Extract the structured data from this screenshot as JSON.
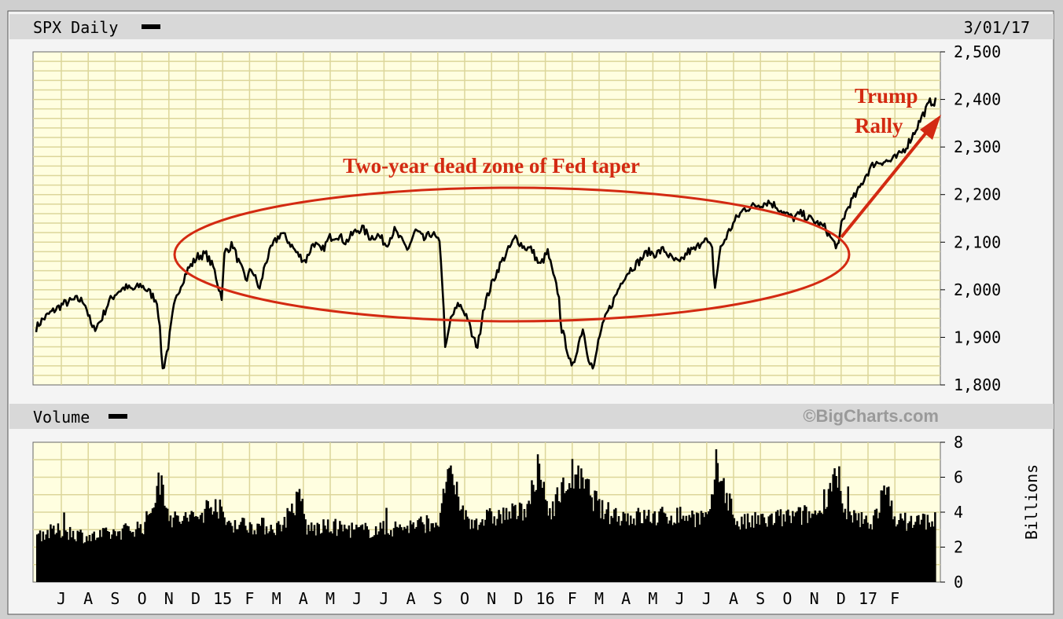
{
  "header": {
    "title": "SPX Daily",
    "date": "3/01/17",
    "volume_title": "Volume",
    "watermark": "©BigCharts.com"
  },
  "colors": {
    "plot_bg": "#fffee0",
    "grid": "#dcd69a",
    "line": "#000000",
    "annotation": "#d32a12",
    "header_bar": "#d8d8d8",
    "frame_bg": "#f4f4f4"
  },
  "chart_data": [
    {
      "type": "line",
      "title": "SPX Daily",
      "x_tick_labels": [
        "J",
        "A",
        "S",
        "O",
        "N",
        "D",
        "15",
        "F",
        "M",
        "A",
        "M",
        "J",
        "J",
        "A",
        "S",
        "O",
        "N",
        "D",
        "16",
        "F",
        "M",
        "A",
        "M",
        "J",
        "J",
        "A",
        "S",
        "O",
        "N",
        "D",
        "17",
        "F"
      ],
      "ylim": [
        1800,
        2500
      ],
      "yticks": [
        1800,
        1900,
        2000,
        2100,
        2200,
        2300,
        2400,
        2500
      ],
      "ytick_labels": [
        "1,800",
        "1,900",
        "2,000",
        "2,100",
        "2,200",
        "2,300",
        "2,400",
        "2,500"
      ],
      "grid": true,
      "series": [
        {
          "approx_path": [
            [
              0,
              1920
            ],
            [
              0.2,
              1935
            ],
            [
              0.5,
              1950
            ],
            [
              1.0,
              1970
            ],
            [
              1.5,
              1980
            ],
            [
              1.8,
              1975
            ],
            [
              2.1,
              1915
            ],
            [
              2.4,
              1935
            ],
            [
              2.7,
              1975
            ],
            [
              3.0,
              1995
            ],
            [
              3.3,
              2005
            ],
            [
              3.6,
              2000
            ],
            [
              3.9,
              2010
            ],
            [
              4.2,
              1995
            ],
            [
              4.5,
              1975
            ],
            [
              4.6,
              1910
            ],
            [
              4.7,
              1830
            ],
            [
              4.9,
              1880
            ],
            [
              5.1,
              1960
            ],
            [
              5.3,
              2000
            ],
            [
              5.6,
              2040
            ],
            [
              6.0,
              2070
            ],
            [
              6.3,
              2075
            ],
            [
              6.6,
              2045
            ],
            [
              6.8,
              2000
            ],
            [
              6.9,
              1985
            ],
            [
              7.0,
              2080
            ],
            [
              7.3,
              2095
            ],
            [
              7.5,
              2060
            ],
            [
              7.8,
              2020
            ],
            [
              8.0,
              2045
            ],
            [
              8.3,
              2000
            ],
            [
              8.5,
              2055
            ],
            [
              8.8,
              2095
            ],
            [
              9.1,
              2120
            ],
            [
              9.4,
              2100
            ],
            [
              9.7,
              2075
            ],
            [
              10.0,
              2060
            ],
            [
              10.3,
              2100
            ],
            [
              10.6,
              2080
            ],
            [
              10.9,
              2110
            ],
            [
              11.2,
              2115
            ],
            [
              11.5,
              2100
            ],
            [
              11.8,
              2120
            ],
            [
              12.1,
              2130
            ],
            [
              12.4,
              2110
            ],
            [
              12.7,
              2115
            ],
            [
              13.0,
              2095
            ],
            [
              13.3,
              2125
            ],
            [
              13.6,
              2100
            ],
            [
              13.8,
              2085
            ],
            [
              14.1,
              2125
            ],
            [
              14.4,
              2105
            ],
            [
              14.7,
              2120
            ],
            [
              15.0,
              2095
            ],
            [
              15.1,
              1995
            ],
            [
              15.2,
              1870
            ],
            [
              15.4,
              1940
            ],
            [
              15.7,
              1970
            ],
            [
              16.0,
              1945
            ],
            [
              16.2,
              1900
            ],
            [
              16.4,
              1880
            ],
            [
              16.6,
              1960
            ],
            [
              16.9,
              2010
            ],
            [
              17.2,
              2050
            ],
            [
              17.5,
              2080
            ],
            [
              17.8,
              2110
            ],
            [
              18.1,
              2090
            ],
            [
              18.4,
              2085
            ],
            [
              18.7,
              2050
            ],
            [
              19.0,
              2080
            ],
            [
              19.2,
              2030
            ],
            [
              19.4,
              1990
            ],
            [
              19.5,
              1920
            ],
            [
              19.7,
              1880
            ],
            [
              19.9,
              1830
            ],
            [
              20.1,
              1880
            ],
            [
              20.3,
              1920
            ],
            [
              20.5,
              1860
            ],
            [
              20.7,
              1830
            ],
            [
              20.9,
              1900
            ],
            [
              21.2,
              1950
            ],
            [
              21.5,
              1985
            ],
            [
              21.8,
              2025
            ],
            [
              22.1,
              2045
            ],
            [
              22.4,
              2060
            ],
            [
              22.7,
              2080
            ],
            [
              23.0,
              2075
            ],
            [
              23.3,
              2085
            ],
            [
              23.6,
              2065
            ],
            [
              23.9,
              2055
            ],
            [
              24.2,
              2080
            ],
            [
              24.5,
              2085
            ],
            [
              24.8,
              2110
            ],
            [
              25.1,
              2085
            ],
            [
              25.2,
              2000
            ],
            [
              25.4,
              2085
            ],
            [
              25.7,
              2120
            ],
            [
              26.0,
              2150
            ],
            [
              26.3,
              2170
            ],
            [
              26.6,
              2175
            ],
            [
              26.9,
              2180
            ],
            [
              27.2,
              2185
            ],
            [
              27.5,
              2175
            ],
            [
              27.8,
              2160
            ],
            [
              28.1,
              2150
            ],
            [
              28.4,
              2160
            ],
            [
              28.7,
              2150
            ],
            [
              29.0,
              2140
            ],
            [
              29.3,
              2130
            ],
            [
              29.6,
              2100
            ],
            [
              29.8,
              2090
            ],
            [
              29.9,
              2140
            ],
            [
              30.2,
              2180
            ],
            [
              30.5,
              2205
            ],
            [
              30.8,
              2240
            ],
            [
              31.1,
              2265
            ],
            [
              31.4,
              2270
            ],
            [
              31.7,
              2270
            ],
            [
              32.0,
              2280
            ],
            [
              32.3,
              2300
            ],
            [
              32.6,
              2330
            ],
            [
              32.9,
              2365
            ],
            [
              33.2,
              2395
            ]
          ]
        }
      ]
    },
    {
      "type": "bar",
      "title": "Volume",
      "ylim": [
        0,
        8
      ],
      "yticks": [
        0,
        2,
        4,
        6,
        8
      ],
      "ytick_labels": [
        "0",
        "2",
        "4",
        "6",
        "8"
      ],
      "ylabel": "Billions",
      "grid": true,
      "series": [
        {
          "approx_profile": [
            [
              0,
              2.8
            ],
            [
              1,
              3.0
            ],
            [
              2,
              2.6
            ],
            [
              3,
              2.9
            ],
            [
              4,
              3.3
            ],
            [
              4.6,
              6.0
            ],
            [
              5,
              3.6
            ],
            [
              6,
              3.8
            ],
            [
              6.6,
              4.8
            ],
            [
              7,
              3.5
            ],
            [
              8,
              3.3
            ],
            [
              9,
              3.2
            ],
            [
              9.8,
              5.0
            ],
            [
              10,
              3.1
            ],
            [
              11,
              3.2
            ],
            [
              12,
              3.0
            ],
            [
              13,
              3.1
            ],
            [
              14,
              3.3
            ],
            [
              15,
              3.6
            ],
            [
              15.2,
              6.5
            ],
            [
              16,
              3.5
            ],
            [
              17,
              3.8
            ],
            [
              18,
              4.1
            ],
            [
              18.7,
              6.1
            ],
            [
              19,
              4.1
            ],
            [
              19.9,
              6.3
            ],
            [
              20.5,
              5.3
            ],
            [
              21,
              4.1
            ],
            [
              22,
              3.8
            ],
            [
              23,
              3.8
            ],
            [
              24,
              3.9
            ],
            [
              25,
              3.7
            ],
            [
              25.2,
              7.0
            ],
            [
              26,
              3.4
            ],
            [
              27,
              3.6
            ],
            [
              28,
              3.8
            ],
            [
              29,
              4.0
            ],
            [
              29.6,
              6.2
            ],
            [
              30,
              3.8
            ],
            [
              31,
              3.5
            ],
            [
              31.5,
              5.3
            ],
            [
              32,
              3.5
            ],
            [
              33,
              3.6
            ]
          ]
        }
      ]
    }
  ],
  "annotations": {
    "dead_zone": "Two-year dead zone of Fed taper",
    "trump_line1": "Trump",
    "trump_line2": "Rally"
  }
}
